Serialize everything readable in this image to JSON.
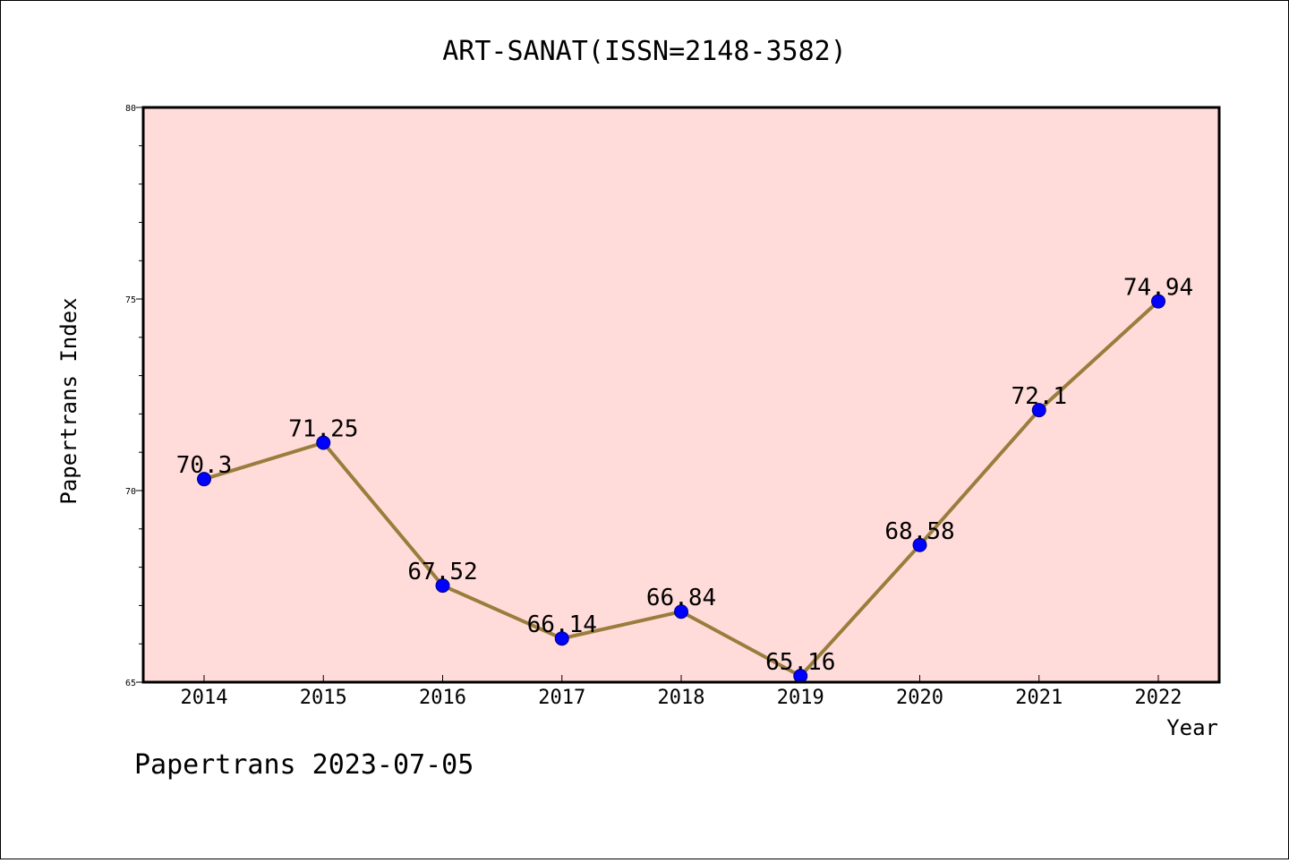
{
  "chart_data": {
    "type": "line",
    "title": "ART-SANAT(ISSN=2148-3582)",
    "xlabel": "Year",
    "ylabel": "Papertrans Index",
    "categories": [
      "2014",
      "2015",
      "2016",
      "2017",
      "2018",
      "2019",
      "2020",
      "2021",
      "2022"
    ],
    "series": [
      {
        "values": [
          70.3,
          71.25,
          67.52,
          66.14,
          66.84,
          65.16,
          68.58,
          72.1,
          74.94
        ],
        "labels": [
          "70.3",
          "71.25",
          "67.52",
          "66.14",
          "66.84",
          "65.16",
          "68.58",
          "72.1",
          "74.94"
        ],
        "line_color": "#9a7d3c",
        "marker_color": "#0000ff"
      }
    ],
    "ylim": [
      65,
      80
    ],
    "yticks": [
      "65",
      "70",
      "75",
      "80"
    ],
    "plot_background": "#ffdcda",
    "grid": false
  },
  "footer": "Papertrans 2023-07-05"
}
